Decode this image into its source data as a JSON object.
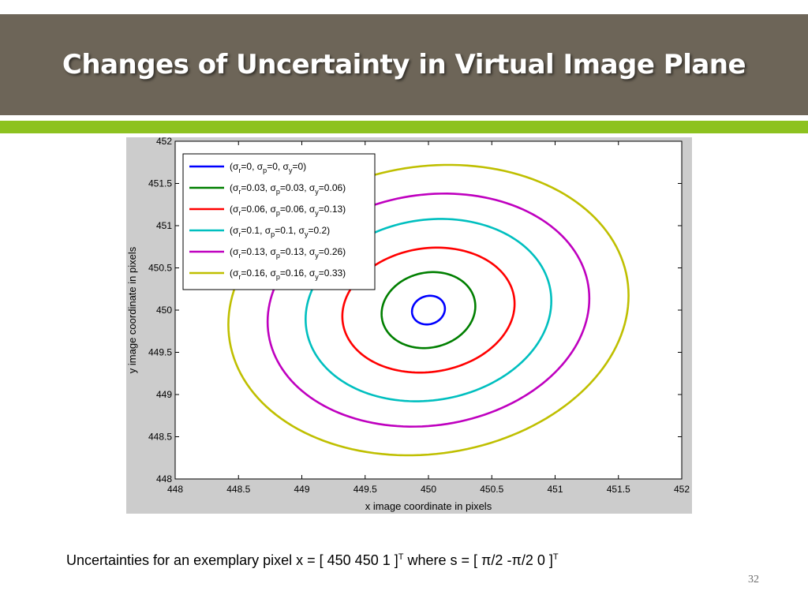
{
  "slide": {
    "title": "Changes of Uncertainty in Virtual Image Plane",
    "caption_main": "Uncertainties for an exemplary pixel x = [ 450 450 1 ]",
    "caption_sup1": "T",
    "caption_mid": " where s = [ π/2  -π/2  0 ]",
    "caption_sup2": "T",
    "page_number": "32",
    "colors": {
      "title_bar": "#6d6558",
      "accent_bar": "#8dc21f",
      "figure_bg": "#cccccc"
    }
  },
  "chart_data": {
    "type": "line",
    "title": "",
    "xlabel": "x image coordinate in pixels",
    "ylabel": "y image coordinate in pixels",
    "xlim": [
      448,
      452
    ],
    "ylim": [
      448,
      452
    ],
    "xticks": [
      "448",
      "448.5",
      "449",
      "449.5",
      "450",
      "450.5",
      "451",
      "451.5",
      "452"
    ],
    "yticks": [
      "448",
      "448.5",
      "449",
      "449.5",
      "450",
      "450.5",
      "451",
      "451.5",
      "452"
    ],
    "grid": false,
    "legend_position": "top-left",
    "center": [
      450,
      450
    ],
    "series": [
      {
        "name": "(σr=0, σp=0, σy=0)",
        "sub": [
          "r",
          "p",
          "y"
        ],
        "vals": [
          "0",
          "0",
          "0"
        ],
        "color": "#0000ff",
        "x_range": [
          449.87,
          450.13
        ],
        "y_range": [
          449.83,
          450.17
        ]
      },
      {
        "name": "(σr=0.03, σp=0.03, σy=0.06)",
        "sub": [
          "r",
          "p",
          "y"
        ],
        "vals": [
          "0.03",
          "0.03",
          "0.06"
        ],
        "color": "#007f00",
        "x_range": [
          449.63,
          450.37
        ],
        "y_range": [
          449.55,
          450.45
        ]
      },
      {
        "name": "(σr=0.06, σp=0.06, σy=0.13)",
        "sub": [
          "r",
          "p",
          "y"
        ],
        "vals": [
          "0.06",
          "0.06",
          "0.13"
        ],
        "color": "#ff0000",
        "x_range": [
          449.32,
          450.68
        ],
        "y_range": [
          449.26,
          450.74
        ]
      },
      {
        "name": "(σr=0.1, σp=0.1, σy=0.2)",
        "sub": [
          "r",
          "p",
          "y"
        ],
        "vals": [
          "0.1",
          "0.1",
          "0.2"
        ],
        "color": "#00bfbf",
        "x_range": [
          449.03,
          450.97
        ],
        "y_range": [
          448.92,
          451.08
        ]
      },
      {
        "name": "(σr=0.13, σp=0.13, σy=0.26)",
        "sub": [
          "r",
          "p",
          "y"
        ],
        "vals": [
          "0.13",
          "0.13",
          "0.26"
        ],
        "color": "#bf00bf",
        "x_range": [
          448.73,
          451.27
        ],
        "y_range": [
          448.62,
          451.38
        ]
      },
      {
        "name": "(σr=0.16, σp=0.16, σy=0.33)",
        "sub": [
          "r",
          "p",
          "y"
        ],
        "vals": [
          "0.16",
          "0.16",
          "0.33"
        ],
        "color": "#bfbf00",
        "x_range": [
          448.42,
          451.58
        ],
        "y_range": [
          448.28,
          451.72
        ]
      }
    ]
  }
}
